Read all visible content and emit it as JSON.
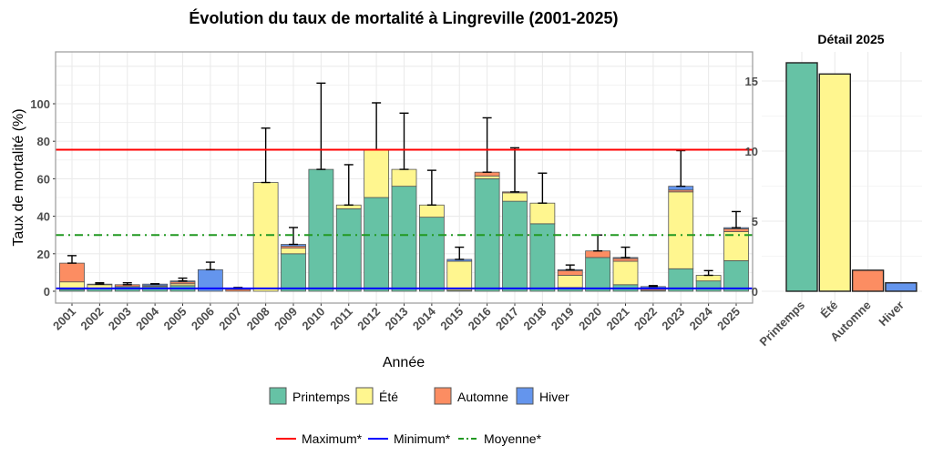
{
  "colors": {
    "Printemps": "#66c2a5",
    "Été": "#fff68f",
    "Automne": "#fc8d62",
    "Hiver": "#6495ed",
    "max": "#ff0000",
    "min": "#0000ff",
    "mean": "#229922"
  },
  "chart_data": [
    {
      "type": "bar",
      "stacked": true,
      "title": "Évolution du taux de mortalité à Lingreville (2001-2025)",
      "xlabel": "Année",
      "ylabel": "Taux de mortalité (%)",
      "ylim": [
        -2,
        128
      ],
      "yticks": [
        0,
        20,
        40,
        60,
        80,
        100
      ],
      "grid": true,
      "categories": [
        "2001",
        "2002",
        "2003",
        "2004",
        "2005",
        "2006",
        "2007",
        "2008",
        "2009",
        "2010",
        "2011",
        "2012",
        "2013",
        "2014",
        "2015",
        "2016",
        "2017",
        "2018",
        "2019",
        "2020",
        "2021",
        "2022",
        "2023",
        "2024",
        "2025"
      ],
      "series": [
        {
          "name": "Printemps",
          "values": [
            1,
            1.5,
            2.5,
            2.5,
            3,
            0,
            0,
            0,
            20,
            65,
            44,
            50,
            56,
            39.5,
            0.5,
            60,
            48,
            36,
            2,
            18,
            3.5,
            0.5,
            12,
            5.5,
            16.3
          ]
        },
        {
          "name": "Été",
          "values": [
            4,
            2,
            0,
            0,
            1,
            0,
            0,
            58,
            3,
            0,
            2,
            25.5,
            9,
            6.5,
            15.5,
            1.5,
            4.5,
            11,
            6.5,
            0,
            12.5,
            0,
            41,
            3,
            15.5
          ]
        },
        {
          "name": "Automne",
          "values": [
            10,
            0,
            1,
            0.5,
            1,
            0,
            1,
            0,
            1,
            0,
            0,
            0,
            0,
            0,
            0,
            2,
            0.5,
            0,
            2.5,
            3.5,
            1.5,
            1,
            1,
            0,
            1.5
          ]
        },
        {
          "name": "Hiver",
          "values": [
            0,
            0.3,
            0,
            0.8,
            0.5,
            11.5,
            0.3,
            0,
            1,
            0,
            0,
            0,
            0,
            0,
            1,
            0,
            0,
            0,
            0.5,
            0,
            0.5,
            1,
            2,
            0,
            0.6
          ]
        }
      ],
      "error_upper": [
        19,
        4.5,
        4.5,
        4,
        7,
        15.5,
        2,
        87,
        34,
        111,
        67.5,
        100.5,
        95,
        64.5,
        23.5,
        92.5,
        76.5,
        63,
        14,
        30,
        23.5,
        3,
        75,
        11,
        42.5
      ],
      "reference_lines": [
        {
          "name": "Maximum*",
          "value": 75.5,
          "style": "solid"
        },
        {
          "name": "Minimum*",
          "value": 1.5,
          "style": "solid"
        },
        {
          "name": "Moyenne*",
          "value": 30,
          "style": "dotdash"
        }
      ],
      "legend_fill": {
        "placement": "bottom",
        "items": [
          "Printemps",
          "Été",
          "Automne",
          "Hiver"
        ]
      },
      "legend_lines": {
        "placement": "bottom",
        "items": [
          "Maximum*",
          "Minimum*",
          "Moyenne*"
        ]
      }
    },
    {
      "type": "bar",
      "title": "Détail 2025",
      "categories": [
        "Printemps",
        "Été",
        "Automne",
        "Hiver"
      ],
      "values": [
        16.3,
        15.5,
        1.5,
        0.6
      ],
      "ylim": [
        -0.3,
        16.8
      ],
      "yticks": [
        0,
        5,
        10,
        15
      ],
      "grid": true
    }
  ]
}
